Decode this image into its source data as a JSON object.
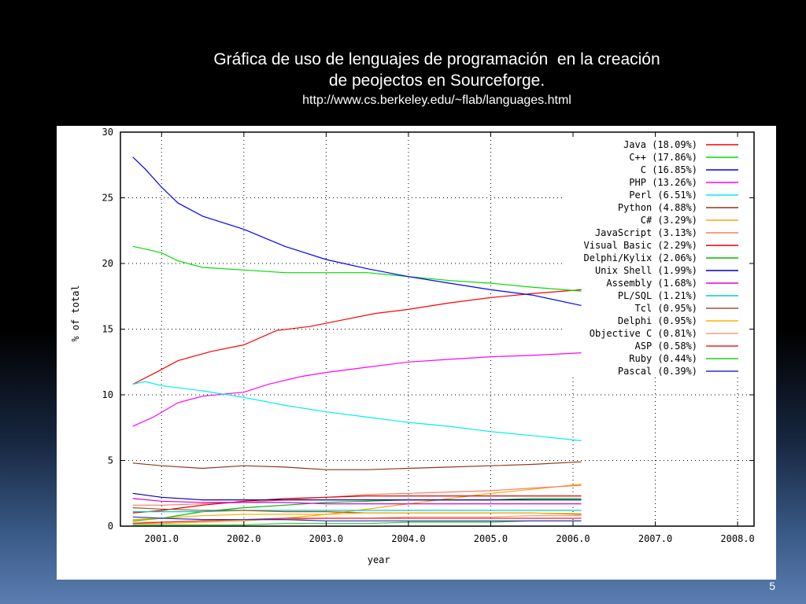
{
  "slide": {
    "title_line1": "Gráfica de uso de lenguajes de programación  en la creación",
    "title_line2": "de peojectos en Sourceforge.",
    "source_url": "http://www.cs.berkeley.edu/~flab/languages.html",
    "page_number": "5"
  },
  "chart_data": {
    "type": "line",
    "xlabel": "year",
    "ylabel": "% of total",
    "xlim": [
      2000.5,
      2008.2
    ],
    "ylim": [
      0,
      30
    ],
    "x_ticks": [
      2001,
      2002,
      2003,
      2004,
      2005,
      2006,
      2007,
      2008
    ],
    "x_tick_labels": [
      "2001.0",
      "2002.0",
      "2003.0",
      "2004.0",
      "2005.0",
      "2006.0",
      "2007.0",
      "2008.0"
    ],
    "y_ticks": [
      0,
      5,
      10,
      15,
      20,
      25,
      30
    ],
    "y_tick_labels": [
      "0",
      "5",
      "10",
      "15",
      "20",
      "25",
      "30"
    ],
    "grid": true,
    "grid_style": "dotted",
    "legend_position": "top-right",
    "series": [
      {
        "name": "Java (18.09%)",
        "color": "#ff0000",
        "x": [
          2000.65,
          2000.9,
          2001.2,
          2001.6,
          2002.0,
          2002.4,
          2002.8,
          2003.2,
          2003.6,
          2004.0,
          2004.5,
          2005.0,
          2005.5,
          2006.1
        ],
        "y": [
          10.8,
          11.6,
          12.6,
          13.3,
          13.8,
          14.9,
          15.2,
          15.7,
          16.2,
          16.5,
          17.0,
          17.4,
          17.7,
          18.0
        ]
      },
      {
        "name": "C++ (17.86%)",
        "color": "#00dd00",
        "x": [
          2000.65,
          2000.8,
          2001.0,
          2001.2,
          2001.5,
          2002.0,
          2002.5,
          2003.0,
          2003.5,
          2004.0,
          2004.5,
          2005.0,
          2005.5,
          2006.1
        ],
        "y": [
          21.3,
          21.1,
          20.8,
          20.2,
          19.7,
          19.5,
          19.3,
          19.3,
          19.3,
          19.0,
          18.7,
          18.5,
          18.2,
          17.9
        ]
      },
      {
        "name": "C (16.85%)",
        "color": "#0000ff",
        "x": [
          2000.65,
          2000.8,
          2001.0,
          2001.2,
          2001.5,
          2002.0,
          2002.5,
          2003.0,
          2003.5,
          2004.0,
          2004.5,
          2005.0,
          2005.5,
          2006.1
        ],
        "y": [
          28.1,
          27.2,
          25.8,
          24.6,
          23.6,
          22.6,
          21.3,
          20.3,
          19.6,
          19.0,
          18.5,
          18.0,
          17.6,
          16.8
        ]
      },
      {
        "name": "PHP (13.26%)",
        "color": "#ff00ff",
        "x": [
          2000.65,
          2000.9,
          2001.2,
          2001.5,
          2002.0,
          2002.3,
          2002.7,
          2003.0,
          2003.5,
          2004.0,
          2004.5,
          2005.0,
          2005.5,
          2006.1
        ],
        "y": [
          7.6,
          8.3,
          9.4,
          9.9,
          10.2,
          10.8,
          11.4,
          11.7,
          12.1,
          12.5,
          12.7,
          12.9,
          13.0,
          13.2
        ]
      },
      {
        "name": "Perl (6.51%)",
        "color": "#00eeee",
        "x": [
          2000.65,
          2000.8,
          2001.0,
          2001.5,
          2002.0,
          2002.5,
          2003.0,
          2003.5,
          2004.0,
          2004.5,
          2005.0,
          2005.5,
          2006.1
        ],
        "y": [
          10.8,
          11.0,
          10.7,
          10.3,
          9.8,
          9.2,
          8.7,
          8.3,
          7.9,
          7.6,
          7.2,
          6.9,
          6.5
        ]
      },
      {
        "name": "Python (4.88%)",
        "color": "#8b3a1a",
        "x": [
          2000.65,
          2001.0,
          2001.5,
          2002.0,
          2002.5,
          2003.0,
          2003.5,
          2004.0,
          2004.5,
          2005.0,
          2005.5,
          2006.1
        ],
        "y": [
          4.8,
          4.6,
          4.4,
          4.6,
          4.5,
          4.3,
          4.3,
          4.4,
          4.5,
          4.6,
          4.7,
          4.9
        ]
      },
      {
        "name": "C# (3.29%)",
        "color": "#ffa500",
        "x": [
          2000.65,
          2001.0,
          2001.5,
          2002.0,
          2002.5,
          2003.0,
          2003.5,
          2004.0,
          2004.5,
          2005.0,
          2005.5,
          2006.1
        ],
        "y": [
          0.2,
          0.2,
          0.3,
          0.4,
          0.6,
          0.9,
          1.3,
          1.7,
          2.1,
          2.5,
          2.8,
          3.2
        ]
      },
      {
        "name": "JavaScript (3.13%)",
        "color": "#f08060",
        "x": [
          2000.65,
          2001.0,
          2001.5,
          2002.0,
          2002.5,
          2003.0,
          2003.5,
          2004.0,
          2004.5,
          2005.0,
          2005.5,
          2006.1
        ],
        "y": [
          1.6,
          1.6,
          1.7,
          1.8,
          2.0,
          2.2,
          2.4,
          2.5,
          2.6,
          2.7,
          2.9,
          3.1
        ]
      },
      {
        "name": "Visual Basic (2.29%)",
        "color": "#dd0000",
        "x": [
          2000.65,
          2001.0,
          2001.5,
          2002.0,
          2002.5,
          2003.0,
          2003.5,
          2004.0,
          2004.5,
          2005.0,
          2005.5,
          2006.1
        ],
        "y": [
          1.0,
          1.2,
          1.6,
          1.9,
          2.1,
          2.2,
          2.3,
          2.3,
          2.3,
          2.3,
          2.3,
          2.3
        ]
      },
      {
        "name": "Delphi/Kylix (2.06%)",
        "color": "#00bb00",
        "x": [
          2000.65,
          2001.0,
          2001.5,
          2002.0,
          2002.5,
          2003.0,
          2003.5,
          2004.0,
          2004.5,
          2005.0,
          2005.5,
          2006.1
        ],
        "y": [
          0.4,
          0.6,
          1.1,
          1.4,
          1.6,
          1.8,
          1.9,
          2.0,
          2.0,
          2.0,
          2.1,
          2.1
        ]
      },
      {
        "name": "Unix Shell (1.99%)",
        "color": "#0000aa",
        "x": [
          2000.65,
          2001.0,
          2001.5,
          2002.0,
          2002.5,
          2003.0,
          2003.5,
          2004.0,
          2004.5,
          2005.0,
          2005.5,
          2006.1
        ],
        "y": [
          2.5,
          2.2,
          2.0,
          2.0,
          2.0,
          2.0,
          2.0,
          2.0,
          2.0,
          2.0,
          2.0,
          2.0
        ]
      },
      {
        "name": "Assembly (1.68%)",
        "color": "#dd00dd",
        "x": [
          2000.65,
          2001.0,
          2001.5,
          2002.0,
          2002.5,
          2003.0,
          2003.5,
          2004.0,
          2004.5,
          2005.0,
          2005.5,
          2006.1
        ],
        "y": [
          2.1,
          1.9,
          1.8,
          1.8,
          1.8,
          1.7,
          1.7,
          1.7,
          1.7,
          1.7,
          1.7,
          1.7
        ]
      },
      {
        "name": "PL/SQL (1.21%)",
        "color": "#00cccc",
        "x": [
          2000.65,
          2001.0,
          2001.5,
          2002.0,
          2002.5,
          2003.0,
          2003.5,
          2004.0,
          2004.5,
          2005.0,
          2005.5,
          2006.1
        ],
        "y": [
          1.1,
          1.1,
          1.1,
          1.2,
          1.2,
          1.2,
          1.2,
          1.2,
          1.2,
          1.2,
          1.2,
          1.2
        ]
      },
      {
        "name": "Tcl (0.95%)",
        "color": "#a0522d",
        "x": [
          2000.65,
          2001.0,
          2001.5,
          2002.0,
          2002.5,
          2003.0,
          2003.5,
          2004.0,
          2004.5,
          2005.0,
          2005.5,
          2006.1
        ],
        "y": [
          1.4,
          1.3,
          1.2,
          1.2,
          1.1,
          1.1,
          1.0,
          1.0,
          1.0,
          1.0,
          1.0,
          0.9
        ]
      },
      {
        "name": "Delphi (0.95%)",
        "color": "#ffb000",
        "x": [
          2000.65,
          2001.0,
          2001.5,
          2002.0,
          2002.5,
          2003.0,
          2003.5,
          2004.0,
          2004.5,
          2005.0,
          2005.5,
          2006.1
        ],
        "y": [
          0.5,
          0.6,
          0.8,
          0.9,
          0.9,
          0.9,
          1.0,
          1.0,
          1.0,
          1.0,
          1.0,
          0.95
        ]
      },
      {
        "name": "Objective C (0.81%)",
        "color": "#f4a080",
        "x": [
          2000.65,
          2001.0,
          2001.5,
          2002.0,
          2002.5,
          2003.0,
          2003.5,
          2004.0,
          2004.5,
          2005.0,
          2005.5,
          2006.1
        ],
        "y": [
          0.3,
          0.3,
          0.4,
          0.5,
          0.5,
          0.6,
          0.6,
          0.7,
          0.7,
          0.7,
          0.8,
          0.8
        ]
      },
      {
        "name": "ASP (0.58%)",
        "color": "#ee2222",
        "x": [
          2000.65,
          2001.0,
          2001.5,
          2002.0,
          2002.5,
          2003.0,
          2003.5,
          2004.0,
          2004.5,
          2005.0,
          2005.5,
          2006.1
        ],
        "y": [
          0.2,
          0.3,
          0.4,
          0.5,
          0.6,
          0.6,
          0.6,
          0.6,
          0.6,
          0.6,
          0.6,
          0.6
        ]
      },
      {
        "name": "Ruby (0.44%)",
        "color": "#22cc22",
        "x": [
          2000.65,
          2001.0,
          2001.5,
          2002.0,
          2002.5,
          2003.0,
          2003.5,
          2004.0,
          2004.5,
          2005.0,
          2005.5,
          2006.1
        ],
        "y": [
          0.1,
          0.1,
          0.1,
          0.1,
          0.2,
          0.2,
          0.2,
          0.3,
          0.3,
          0.3,
          0.4,
          0.4
        ]
      },
      {
        "name": "Pascal (0.39%)",
        "color": "#2233cc",
        "x": [
          2000.65,
          2001.0,
          2001.5,
          2002.0,
          2002.5,
          2003.0,
          2003.5,
          2004.0,
          2004.5,
          2005.0,
          2005.5,
          2006.1
        ],
        "y": [
          0.7,
          0.6,
          0.5,
          0.5,
          0.5,
          0.4,
          0.4,
          0.4,
          0.4,
          0.4,
          0.4,
          0.4
        ]
      }
    ]
  }
}
